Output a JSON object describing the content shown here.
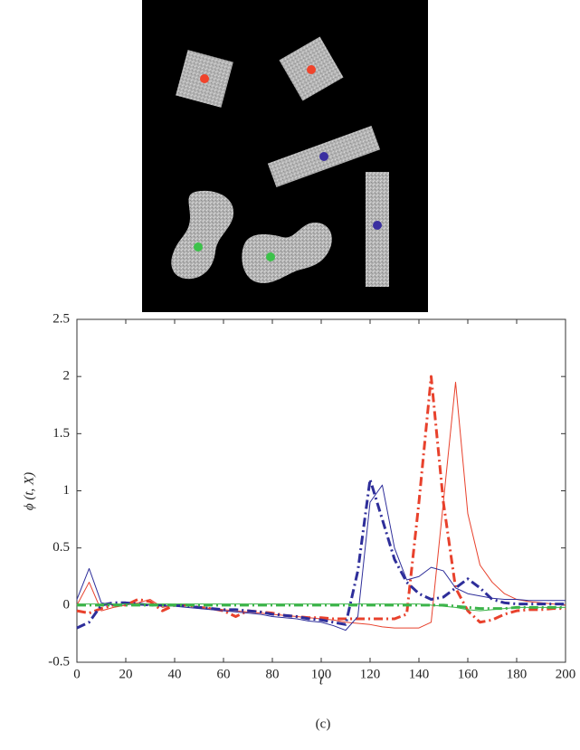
{
  "chart_data": {
    "type": "line",
    "x": [
      0,
      5,
      10,
      15,
      20,
      25,
      30,
      35,
      40,
      45,
      50,
      55,
      60,
      65,
      70,
      75,
      80,
      85,
      90,
      95,
      100,
      105,
      110,
      115,
      120,
      125,
      130,
      135,
      140,
      145,
      150,
      155,
      160,
      165,
      170,
      175,
      180,
      185,
      190,
      195,
      200
    ],
    "series": [
      {
        "color": "#e8412c",
        "linestyle": "solid",
        "linewidth": 1,
        "values": [
          0,
          0.2,
          -0.05,
          -0.02,
          0,
          0.02,
          0.05,
          -0.02,
          0,
          0,
          -0.02,
          -0.03,
          -0.04,
          -0.05,
          -0.06,
          -0.07,
          -0.08,
          -0.09,
          -0.1,
          -0.11,
          -0.12,
          -0.13,
          -0.15,
          -0.16,
          -0.17,
          -0.19,
          -0.2,
          -0.2,
          -0.2,
          -0.15,
          0.9,
          1.95,
          0.8,
          0.35,
          0.2,
          0.1,
          0.05,
          0.03,
          0.02,
          0.01,
          0
        ]
      },
      {
        "color": "#e8412c",
        "linestyle": "dashdot",
        "linewidth": 3,
        "values": [
          -0.05,
          -0.07,
          -0.03,
          0,
          0,
          0.05,
          0.03,
          -0.05,
          0,
          0,
          -0.02,
          -0.03,
          -0.05,
          -0.1,
          -0.05,
          -0.06,
          -0.07,
          -0.09,
          -0.1,
          -0.11,
          -0.11,
          -0.12,
          -0.12,
          -0.12,
          -0.12,
          -0.12,
          -0.12,
          -0.08,
          0.9,
          2.0,
          0.9,
          0.15,
          -0.05,
          -0.15,
          -0.13,
          -0.08,
          -0.05,
          -0.04,
          -0.04,
          -0.03,
          -0.03
        ]
      },
      {
        "color": "#2e2e9a",
        "linestyle": "solid",
        "linewidth": 1,
        "values": [
          0.05,
          0.32,
          0.02,
          0,
          0.01,
          0,
          0,
          0,
          -0.01,
          -0.02,
          -0.03,
          -0.04,
          -0.05,
          -0.06,
          -0.07,
          -0.08,
          -0.1,
          -0.11,
          -0.12,
          -0.14,
          -0.15,
          -0.18,
          -0.22,
          -0.1,
          0.9,
          1.05,
          0.5,
          0.22,
          0.25,
          0.33,
          0.3,
          0.15,
          0.1,
          0.08,
          0.06,
          0.05,
          0.05,
          0.04,
          0.04,
          0.04,
          0.04
        ]
      },
      {
        "color": "#2e2e9a",
        "linestyle": "dashdot",
        "linewidth": 3,
        "values": [
          -0.2,
          -0.15,
          0,
          0.02,
          0.02,
          0.01,
          0,
          0,
          0,
          -0.01,
          -0.02,
          -0.03,
          -0.04,
          -0.04,
          -0.05,
          -0.06,
          -0.08,
          -0.09,
          -0.1,
          -0.12,
          -0.13,
          -0.15,
          -0.17,
          0.3,
          1.1,
          0.75,
          0.4,
          0.2,
          0.1,
          0.05,
          0.07,
          0.15,
          0.23,
          0.15,
          0.05,
          0.02,
          0.01,
          0.01,
          0.01,
          0.01,
          0.01
        ]
      },
      {
        "color": "#3cb44a",
        "linestyle": "solid",
        "linewidth": 1,
        "values": [
          0.01,
          0.01,
          0.01,
          0.01,
          0.01,
          0.01,
          0.01,
          0.01,
          0.01,
          0.01,
          0.01,
          0.01,
          0.01,
          0.01,
          0.01,
          0.01,
          0.01,
          0.01,
          0.01,
          0.01,
          0.01,
          0.01,
          0.01,
          0.01,
          0.01,
          0.01,
          0.01,
          0.01,
          0.01,
          0,
          -0.01,
          -0.02,
          -0.04,
          -0.05,
          -0.04,
          -0.03,
          -0.02,
          -0.02,
          -0.02,
          -0.02,
          -0.02
        ]
      },
      {
        "color": "#3cb44a",
        "linestyle": "dashdot",
        "linewidth": 3,
        "values": [
          0,
          0,
          0,
          0,
          0,
          0,
          0,
          0,
          0,
          0,
          0,
          0,
          0,
          0,
          0,
          0,
          0,
          0,
          0,
          0,
          0,
          0,
          0,
          0,
          0,
          0,
          0,
          0,
          0,
          0,
          0,
          -0.01,
          -0.02,
          -0.03,
          -0.03,
          -0.03,
          -0.02,
          -0.02,
          -0.02,
          -0.02,
          -0.02
        ]
      }
    ],
    "xlabel": "t",
    "ylabel": "ϕ (t, X)",
    "xlim": [
      0,
      200
    ],
    "xticks": [
      0,
      20,
      40,
      60,
      80,
      100,
      120,
      140,
      160,
      180,
      200
    ],
    "ylim": [
      -0.5,
      2.5
    ],
    "yticks": [
      -0.5,
      0,
      0.5,
      1,
      1.5,
      2,
      2.5
    ]
  },
  "caption": "(c)"
}
